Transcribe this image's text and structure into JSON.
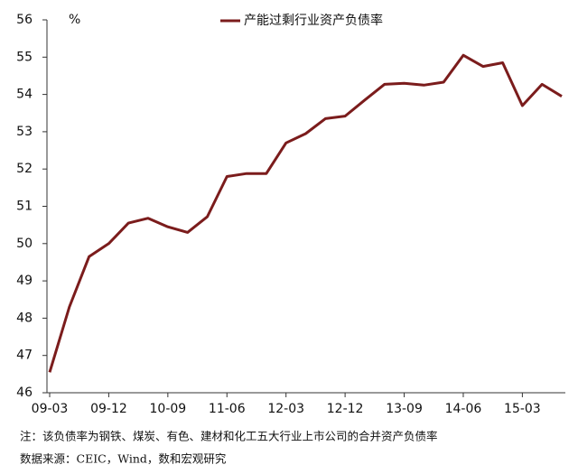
{
  "chart_data": {
    "type": "line",
    "y_unit_label": "%",
    "categories": [
      "09-03",
      null,
      null,
      "09-12",
      null,
      null,
      "10-09",
      null,
      null,
      "11-06",
      null,
      null,
      "12-03",
      null,
      null,
      "12-12",
      null,
      null,
      "13-09",
      null,
      null,
      "14-06",
      null,
      null,
      "15-03",
      null,
      null
    ],
    "series": [
      {
        "name": "产能过剩行业资产负债率",
        "color": "#7b1c1c",
        "values": [
          46.55,
          48.3,
          49.65,
          50.0,
          50.55,
          50.68,
          50.45,
          50.3,
          50.72,
          51.8,
          51.88,
          51.88,
          52.7,
          52.95,
          53.35,
          53.42,
          53.85,
          54.27,
          54.3,
          54.25,
          54.33,
          55.05,
          54.75,
          54.85,
          53.7,
          54.27,
          53.95
        ]
      }
    ],
    "ylim": [
      46,
      56
    ],
    "yticks": [
      46,
      47,
      48,
      49,
      50,
      51,
      52,
      53,
      54,
      55,
      56
    ],
    "notes": [
      "注：该负债率为钢铁、煤炭、有色、建材和化工五大行业上市公司的合并资产负债率",
      "数据来源：CEIC，Wind，数和宏观研究"
    ]
  }
}
